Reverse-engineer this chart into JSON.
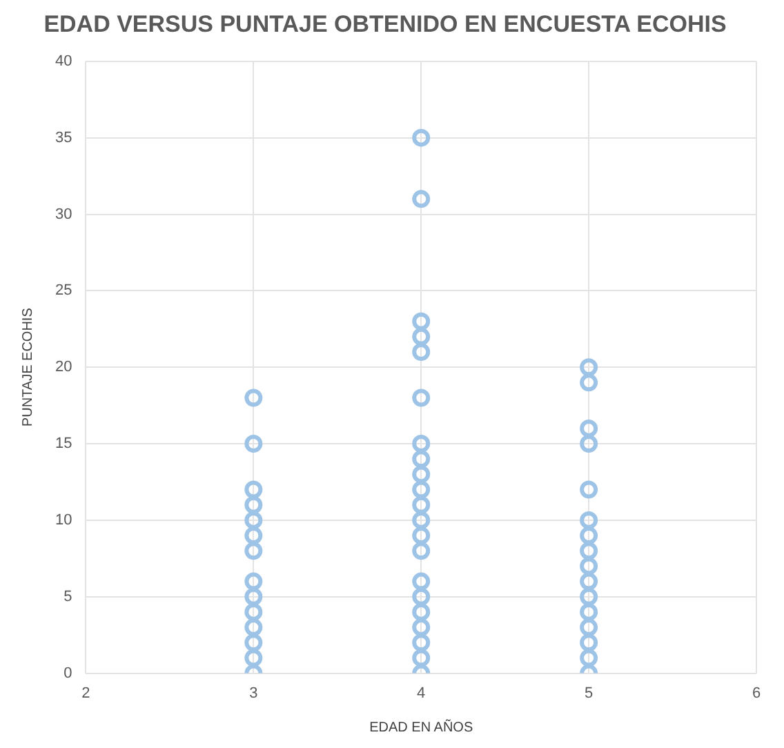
{
  "chart_data": {
    "type": "scatter",
    "title": "EDAD VERSUS PUNTAJE OBTENIDO EN ENCUESTA ECOHIS",
    "xlabel": "EDAD EN AÑOS",
    "ylabel": "PUNTAJE ECOHIS",
    "x": [
      3,
      3,
      3,
      3,
      3,
      3,
      3,
      3,
      3,
      3,
      3,
      3,
      3,
      3,
      4,
      4,
      4,
      4,
      4,
      4,
      4,
      4,
      4,
      4,
      4,
      4,
      4,
      4,
      4,
      4,
      4,
      4,
      4,
      4,
      4,
      5,
      5,
      5,
      5,
      5,
      5,
      5,
      5,
      5,
      5,
      5,
      5,
      5,
      5,
      5,
      5
    ],
    "values": [
      0,
      1,
      2,
      3,
      4,
      5,
      6,
      8,
      9,
      10,
      11,
      12,
      15,
      18,
      0,
      1,
      2,
      3,
      4,
      5,
      6,
      8,
      9,
      10,
      11,
      12,
      13,
      14,
      15,
      18,
      21,
      22,
      23,
      31,
      35,
      0,
      1,
      2,
      3,
      4,
      5,
      6,
      7,
      8,
      9,
      10,
      12,
      15,
      16,
      19,
      20
    ],
    "color": "#9dc3e6",
    "marker": "circle",
    "grid": true,
    "legend": false,
    "xlim": [
      2,
      6
    ],
    "xticks": [
      2,
      3,
      4,
      5,
      6
    ],
    "ylim": [
      0,
      40
    ],
    "yticks": [
      0,
      5,
      10,
      15,
      20,
      25,
      30,
      35,
      40
    ]
  }
}
